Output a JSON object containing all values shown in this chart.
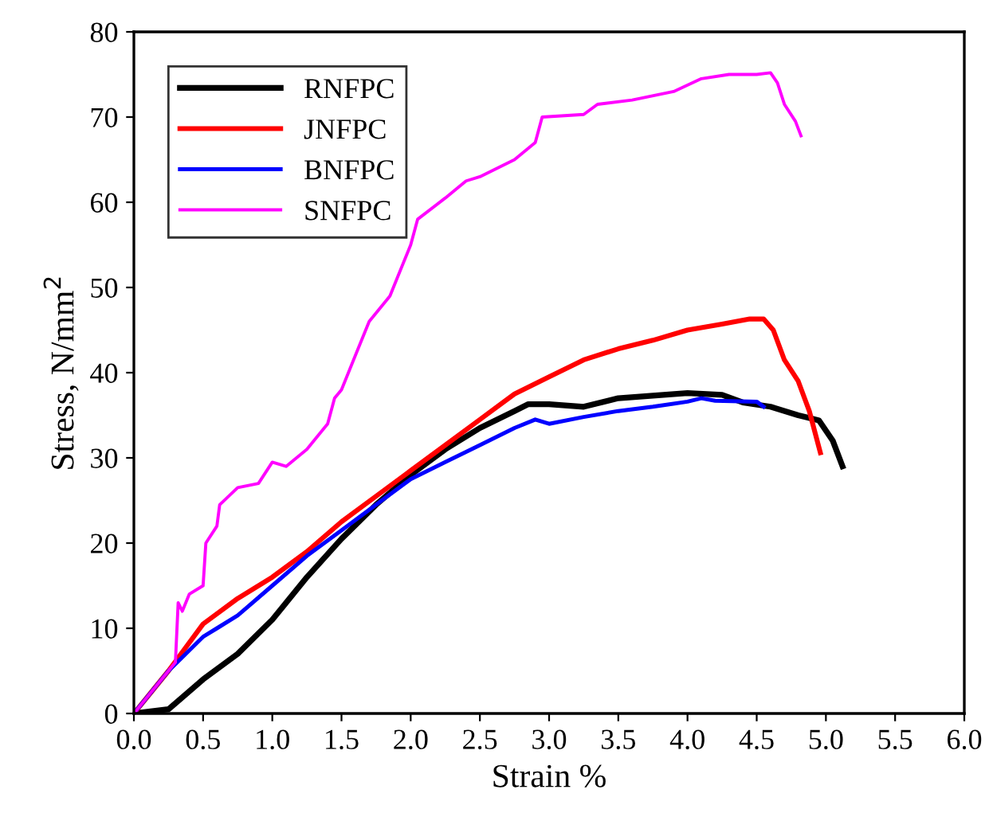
{
  "chart_data": {
    "type": "line",
    "xlabel": "Strain %",
    "ylabel": "Stress, N/mm$^{2}$",
    "xlim": [
      0,
      6
    ],
    "ylim": [
      0,
      80
    ],
    "xticks": [
      {
        "value": 0,
        "label": "0.0"
      },
      {
        "value": 0.5,
        "label": "0.5"
      },
      {
        "value": 1,
        "label": "1.0"
      },
      {
        "value": 1.5,
        "label": "1.5"
      },
      {
        "value": 2,
        "label": "2.0"
      },
      {
        "value": 2.5,
        "label": "2.5"
      },
      {
        "value": 3,
        "label": "3.0"
      },
      {
        "value": 3.5,
        "label": "3.5"
      },
      {
        "value": 4,
        "label": "4.0"
      },
      {
        "value": 4.5,
        "label": "4.5"
      },
      {
        "value": 5,
        "label": "5.0"
      },
      {
        "value": 5.5,
        "label": "5.5"
      },
      {
        "value": 6,
        "label": "6.0"
      }
    ],
    "yticks": [
      0,
      10,
      20,
      30,
      40,
      50,
      60,
      70,
      80
    ],
    "grid": false,
    "legend": "top left",
    "marker": "none",
    "line_style": "solid",
    "series": [
      {
        "name": "RNFPC",
        "color": "#000000",
        "x": [
          0,
          0.25,
          0.5,
          0.75,
          1.0,
          1.25,
          1.5,
          1.75,
          2.0,
          2.25,
          2.5,
          2.75,
          2.85,
          3.0,
          3.25,
          3.5,
          3.75,
          4.0,
          4.25,
          4.4,
          4.6,
          4.8,
          4.95,
          5.05,
          5.12
        ],
        "values": [
          0,
          0.5,
          4,
          7,
          11,
          16,
          20.5,
          24.5,
          28,
          31,
          33.5,
          35.5,
          36.3,
          36.3,
          36,
          37,
          37.3,
          37.6,
          37.4,
          36.5,
          36,
          35,
          34.4,
          32,
          29
        ]
      },
      {
        "name": "JNFPC",
        "color": "#ff0000",
        "x": [
          0,
          0.25,
          0.5,
          0.75,
          1.0,
          1.25,
          1.5,
          1.75,
          2.0,
          2.25,
          2.5,
          2.75,
          3.0,
          3.25,
          3.5,
          3.75,
          4.0,
          4.25,
          4.45,
          4.55,
          4.62,
          4.7,
          4.8,
          4.88,
          4.96
        ],
        "values": [
          0,
          5,
          10.5,
          13.5,
          16,
          19,
          22.5,
          25.5,
          28.5,
          31.5,
          34.5,
          37.5,
          39.5,
          41.5,
          42.8,
          43.8,
          45,
          45.7,
          46.3,
          46.3,
          45,
          41.5,
          39,
          35.5,
          30.6
        ]
      },
      {
        "name": "BNFPC",
        "color": "#0000ff",
        "x": [
          0,
          0.25,
          0.5,
          0.6,
          0.75,
          1.0,
          1.25,
          1.5,
          1.75,
          2.0,
          2.25,
          2.5,
          2.75,
          2.9,
          3.0,
          3.25,
          3.5,
          3.75,
          4.0,
          4.1,
          4.2,
          4.5,
          4.55
        ],
        "values": [
          0,
          5,
          9,
          10,
          11.5,
          15,
          18.5,
          21.5,
          24.5,
          27.5,
          29.5,
          31.5,
          33.5,
          34.5,
          34,
          34.8,
          35.5,
          36,
          36.6,
          37,
          36.7,
          36.6,
          36
        ]
      },
      {
        "name": "SNFPC",
        "color": "#ff00ff",
        "x": [
          0,
          0.3,
          0.32,
          0.35,
          0.4,
          0.5,
          0.52,
          0.6,
          0.62,
          0.75,
          0.9,
          1.0,
          1.1,
          1.25,
          1.4,
          1.45,
          1.5,
          1.6,
          1.7,
          1.85,
          1.9,
          2.0,
          2.05,
          2.25,
          2.4,
          2.5,
          2.75,
          2.9,
          2.95,
          3.25,
          3.35,
          3.6,
          3.9,
          4.1,
          4.3,
          4.5,
          4.6,
          4.65,
          4.7,
          4.78,
          4.82
        ],
        "values": [
          0,
          6,
          13,
          12,
          14,
          15,
          20,
          22,
          24.5,
          26.5,
          27,
          29.5,
          29,
          31,
          34,
          37,
          38,
          42,
          46,
          49,
          51,
          55,
          58,
          60.5,
          62.5,
          63,
          65,
          67,
          70,
          70.3,
          71.5,
          72,
          73,
          74.5,
          75,
          75,
          75.2,
          74,
          71.5,
          69.5,
          67.8
        ]
      }
    ]
  }
}
